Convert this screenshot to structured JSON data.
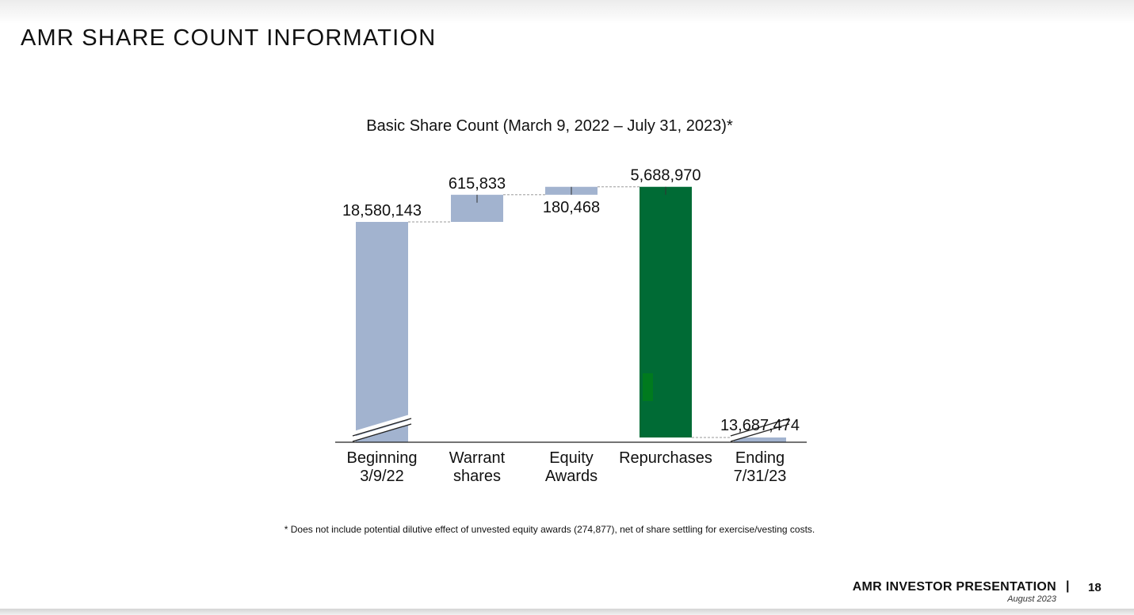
{
  "slide": {
    "title": "AMR SHARE COUNT INFORMATION",
    "footnote": "* Does not include potential dilutive effect of unvested equity awards (274,877), net of share settling for exercise/vesting costs.",
    "footer": {
      "presentation": "AMR INVESTOR PRESENTATION",
      "separator": "|",
      "page": "18",
      "date": "August 2023"
    }
  },
  "chart_data": {
    "type": "bar",
    "subtype": "waterfall",
    "title": "Basic Share Count (March 9, 2022 – July 31, 2023)*",
    "xlabel": "",
    "ylabel": "",
    "broken_axis": true,
    "grid": false,
    "legend": "none",
    "categories": [
      [
        "Beginning",
        "3/9/22"
      ],
      [
        "Warrant",
        "shares"
      ],
      [
        "Equity",
        "Awards"
      ],
      [
        "Repurchases"
      ],
      [
        "Ending",
        "7/31/23"
      ]
    ],
    "values": [
      18580143,
      615833,
      180468,
      -5688970,
      13687474
    ],
    "labels": [
      "18,580,143",
      "615,833",
      "180,468",
      "5,688,970",
      "13,687,474"
    ],
    "kinds": [
      "total",
      "increase",
      "increase",
      "decrease",
      "total"
    ],
    "colors": {
      "total": "#a2b3cf",
      "increase": "#a2b3cf",
      "decrease": "#006b35",
      "accent_mark": "#007a1e",
      "axis": "#222222",
      "connector": "#9a9a9a"
    }
  }
}
